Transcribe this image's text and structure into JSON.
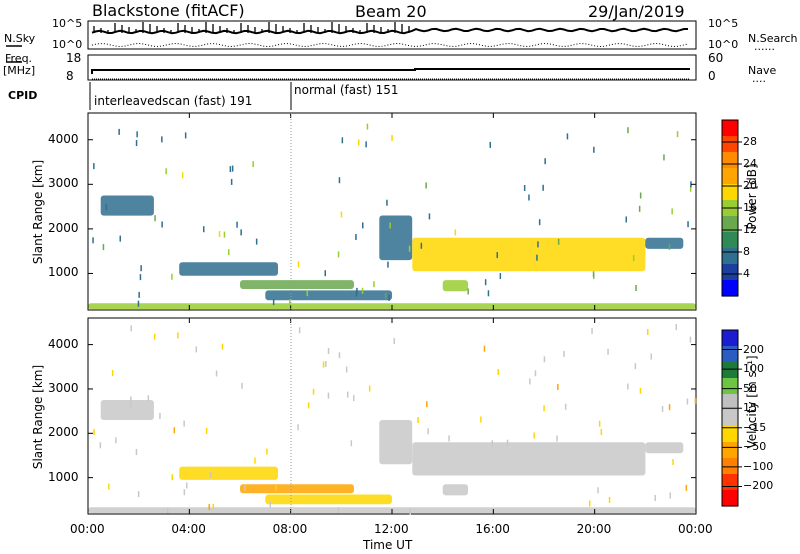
{
  "header": {
    "station": "Blackstone (fitACF)",
    "beam": "Beam 20",
    "date": "29/Jan/2019"
  },
  "summary_labels": {
    "nsky": "N.Sky",
    "nsearch": "N.Search",
    "freq": "Freq.",
    "freq_unit": "[MHz]",
    "nave": "Nave",
    "cpid": "CPID",
    "left_top_tick": "10^5",
    "left_bottom_tick": "10^0",
    "right_top_tick": "10^5",
    "right_bottom_tick": "10^0",
    "freq_hi": "18",
    "freq_lo": "8",
    "nave_hi": "60",
    "nave_lo": "0",
    "dots": "......",
    "dots_short": "...."
  },
  "cpid": {
    "mode1": "interleavedscan (fast) 191",
    "mode2": "normal (fast) 151"
  },
  "axes": {
    "ylabel": "Slant Range [km]",
    "xlabel": "Time UT",
    "yticks": [
      "4000",
      "3000",
      "2000",
      "1000"
    ],
    "xticks": [
      "00:00",
      "04:00",
      "08:00",
      "12:00",
      "16:00",
      "20:00",
      "00:00"
    ]
  },
  "colorbars": {
    "power_title": "Power [dB]",
    "power_ticks": [
      "28",
      "24",
      "20",
      "16",
      "12",
      "8",
      "4"
    ],
    "velocity_title": "Velocity [m s⁻¹]",
    "velocity_ticks": [
      "200",
      "100",
      "50",
      "15",
      "−15",
      "−50",
      "−100",
      "−200"
    ]
  },
  "colors": {
    "power_scale": [
      "#ff0000",
      "#ff4500",
      "#ff8c00",
      "#ffa500",
      "#ffd700",
      "#9acd32",
      "#6aa84f",
      "#2e8b57",
      "#2f6f8f",
      "#1c3f9f",
      "#0000ff"
    ],
    "velocity_scale": [
      "#1c1cd0",
      "#2a5dbf",
      "#1e7a3a",
      "#6cc644",
      "#c0c0c0",
      "#c8c8c8",
      "#ffd700",
      "#ffa500",
      "#ff7f00",
      "#ff3300",
      "#ff0000"
    ]
  },
  "chart_data": [
    {
      "type": "heatmap",
      "title": "Power [dB]",
      "xlabel": "Time UT",
      "ylabel": "Slant Range [km]",
      "xlim": [
        0,
        24
      ],
      "ylim": [
        180,
        4600
      ],
      "color_range": [
        0,
        30
      ],
      "echo_regions": [
        {
          "t0": 0,
          "t1": 24,
          "r0": 200,
          "r1": 330,
          "v": 16
        },
        {
          "t0": 0.5,
          "t1": 2.6,
          "r0": 2300,
          "r1": 2750,
          "v": 6
        },
        {
          "t0": 3.6,
          "t1": 7.5,
          "r0": 950,
          "r1": 1250,
          "v": 7
        },
        {
          "t0": 6.0,
          "t1": 10.5,
          "r0": 650,
          "r1": 850,
          "v": 12
        },
        {
          "t0": 7.0,
          "t1": 12.0,
          "r0": 400,
          "r1": 620,
          "v": 7
        },
        {
          "t0": 11.5,
          "t1": 12.8,
          "r0": 1300,
          "r1": 2300,
          "v": 5
        },
        {
          "t0": 12.8,
          "t1": 22.0,
          "r0": 1050,
          "r1": 1800,
          "v": 18
        },
        {
          "t0": 14.0,
          "t1": 15.0,
          "r0": 600,
          "r1": 850,
          "v": 14
        },
        {
          "t0": 22.0,
          "t1": 23.5,
          "r0": 1550,
          "r1": 1800,
          "v": 6
        }
      ]
    },
    {
      "type": "heatmap",
      "title": "Velocity [m s⁻¹]",
      "xlabel": "Time UT",
      "ylabel": "Slant Range [km]",
      "xlim": [
        0,
        24
      ],
      "ylim": [
        180,
        4600
      ],
      "color_range": [
        -250,
        250
      ],
      "echo_regions": [
        {
          "t0": 0,
          "t1": 24,
          "r0": 200,
          "r1": 330,
          "v": 5
        },
        {
          "t0": 0.5,
          "t1": 2.6,
          "r0": 2300,
          "r1": 2750,
          "v": 0
        },
        {
          "t0": 3.6,
          "t1": 7.5,
          "r0": 950,
          "r1": 1250,
          "v": -60
        },
        {
          "t0": 6.0,
          "t1": 10.5,
          "r0": 650,
          "r1": 850,
          "v": -80
        },
        {
          "t0": 7.0,
          "t1": 12.0,
          "r0": 400,
          "r1": 620,
          "v": -30
        },
        {
          "t0": 11.5,
          "t1": 12.8,
          "r0": 1300,
          "r1": 2300,
          "v": 0
        },
        {
          "t0": 12.8,
          "t1": 22.0,
          "r0": 1050,
          "r1": 1800,
          "v": 0
        },
        {
          "t0": 14.0,
          "t1": 15.0,
          "r0": 600,
          "r1": 850,
          "v": 0
        },
        {
          "t0": 22.0,
          "t1": 23.5,
          "r0": 1550,
          "r1": 1800,
          "v": 0
        }
      ]
    }
  ]
}
